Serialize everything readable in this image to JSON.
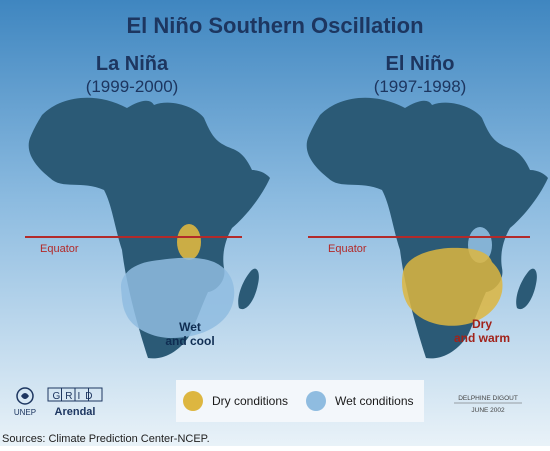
{
  "title": "El Niño Southern Oscillation",
  "panels": [
    {
      "name": "La Niña",
      "years": "(1999-2000)",
      "equator_label": "Equator",
      "zone_label_line1": "Wet",
      "zone_label_line2": "and cool"
    },
    {
      "name": "El Niño",
      "years": "(1997-1998)",
      "equator_label": "Equator",
      "zone_label_line1": "Dry",
      "zone_label_line2": "and warm"
    }
  ],
  "legend": [
    {
      "label": "Dry conditions",
      "color": "#ddb640"
    },
    {
      "label": "Wet conditions",
      "color": "#8fbce0"
    }
  ],
  "logos": {
    "unep": "UNEP",
    "grid": "GRID",
    "arendal": "Arendal"
  },
  "credit": {
    "author": "DELPHINE DIGOUT",
    "date": "JUNE 2002"
  },
  "source": "Sources: Climate Prediction Center-NCEP.",
  "colors": {
    "land": "#2b5a76",
    "equator": "#b32a2a",
    "sky_top": "#3f86c0",
    "sky_bottom": "#e9f2f8",
    "title": "#1d3660",
    "wet_text": "#0f2d52",
    "dry_text": "#a1221a"
  }
}
